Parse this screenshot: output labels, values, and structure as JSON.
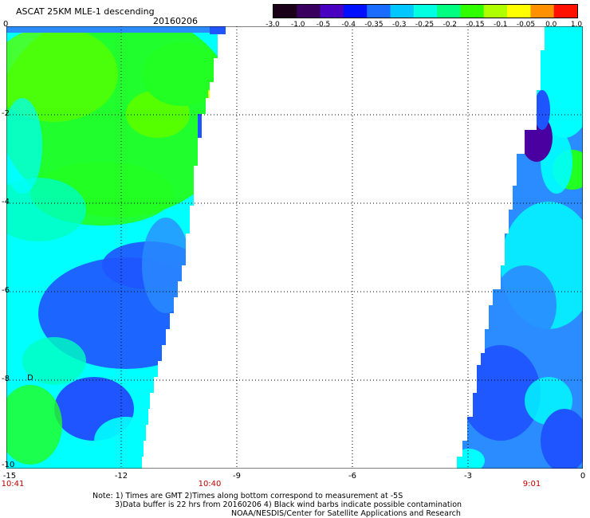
{
  "header": {
    "title": "ASCAT 25KM MLE-1 descending",
    "date": "20160206"
  },
  "colorbar": {
    "labels": [
      "-3.0",
      "-1.0",
      "-0.5",
      "-0.4",
      "-0.35",
      "-0.3",
      "-0.25",
      "-0.2",
      "-0.15",
      "-0.1",
      "-0.05",
      "0.0",
      "1.0"
    ],
    "colors": [
      "#1a0018",
      "#3a0060",
      "#4a00c0",
      "#0010ff",
      "#1a6cff",
      "#00c8ff",
      "#00ffe0",
      "#00ff80",
      "#30ff00",
      "#b0ff00",
      "#ffff00",
      "#ff9000",
      "#ff1000"
    ]
  },
  "axes": {
    "y_labels": [
      "0",
      "-2",
      "-4",
      "-6",
      "-8",
      "-10"
    ],
    "x_labels": [
      "-15",
      "-12",
      "-9",
      "-6",
      "-3",
      "0"
    ]
  },
  "map": {
    "lon_range": [
      -15,
      0
    ],
    "lat_range": [
      -10,
      0
    ],
    "grid": true,
    "swath_colors": {
      "deep": "#4a00a0",
      "blue": "#1f55ff",
      "mid_blue": "#2a8cff",
      "cyan": "#00ffff",
      "aqua": "#00ffc0",
      "green": "#22ff22",
      "lime": "#55ff00",
      "yellow": "#ffff00"
    }
  },
  "times": {
    "left": "10:41",
    "mid": "10:40",
    "right": "9:01"
  },
  "footer": {
    "line1": "Note: 1) Times are GMT 2)Times along bottom correspond to measurement at -5S",
    "line2": "3)Data buffer is 22 hrs from 20160206 4) Black wind barbs indicate possible contamination",
    "line3": "NOAA/NESDIS/Center for Satellite Applications and Research"
  }
}
